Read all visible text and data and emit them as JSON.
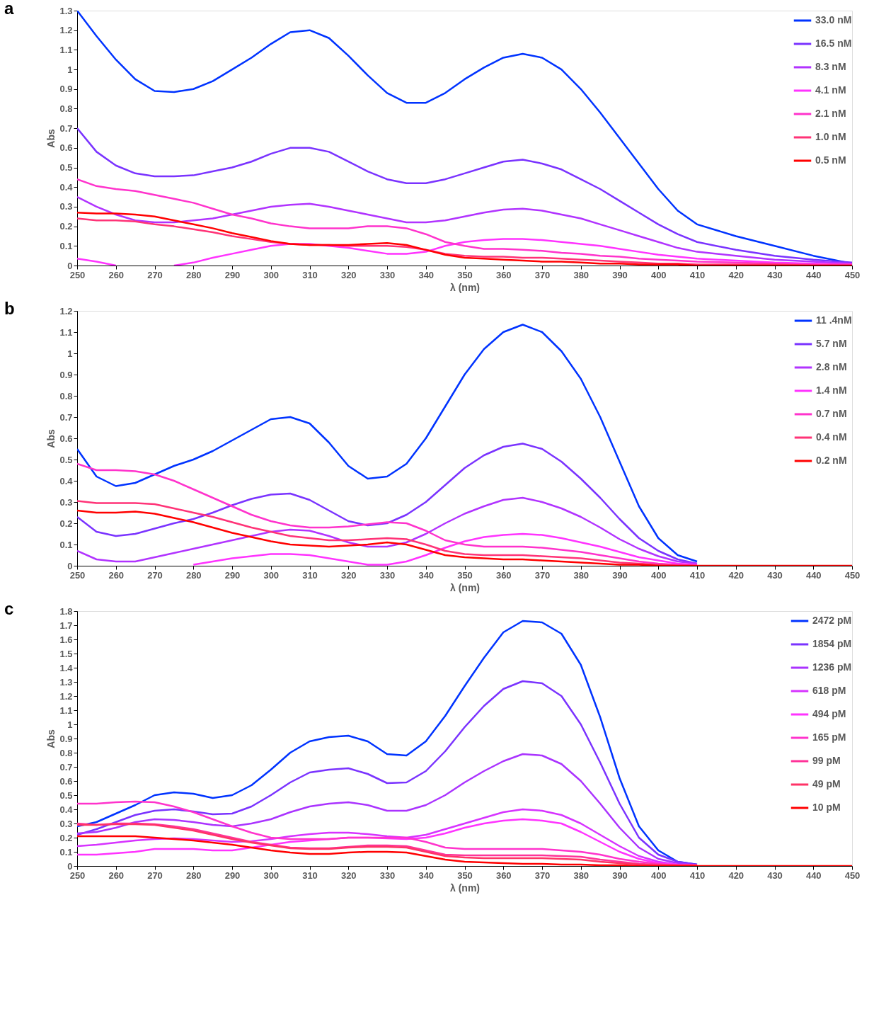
{
  "chart_data": [
    {
      "type": "line",
      "title": "a",
      "xlabel": "λ (nm)",
      "ylabel": "Abs",
      "xlim": [
        250,
        450
      ],
      "ylim": [
        0,
        1.3
      ],
      "xticks": [
        250,
        260,
        270,
        280,
        290,
        300,
        310,
        320,
        330,
        340,
        350,
        360,
        370,
        380,
        390,
        400,
        410,
        420,
        430,
        440,
        450
      ],
      "yticks": [
        0,
        0.1,
        0.2,
        0.3,
        0.4,
        0.5,
        0.6,
        0.7,
        0.8,
        0.9,
        1,
        1.1,
        1.2,
        1.3
      ],
      "grid": false,
      "legend": "top right",
      "marker": "none",
      "line_style": "solid",
      "x": [
        250,
        255,
        260,
        265,
        270,
        275,
        280,
        285,
        290,
        295,
        300,
        305,
        310,
        315,
        320,
        325,
        330,
        335,
        340,
        345,
        350,
        355,
        360,
        365,
        370,
        375,
        380,
        385,
        390,
        395,
        400,
        405,
        410,
        420,
        430,
        440,
        450
      ],
      "series": [
        {
          "name": "33.0 nM",
          "color": "#0033ff",
          "values": [
            1.3,
            1.17,
            1.05,
            0.95,
            0.89,
            0.885,
            0.9,
            0.94,
            1.0,
            1.06,
            1.13,
            1.19,
            1.2,
            1.16,
            1.07,
            0.97,
            0.88,
            0.83,
            0.83,
            0.88,
            0.95,
            1.01,
            1.06,
            1.08,
            1.06,
            1.0,
            0.9,
            0.78,
            0.65,
            0.52,
            0.39,
            0.28,
            0.21,
            0.15,
            0.1,
            0.05,
            0.01
          ]
        },
        {
          "name": "16.5 nM",
          "color": "#7a33ff",
          "values": [
            0.7,
            0.58,
            0.51,
            0.47,
            0.455,
            0.455,
            0.46,
            0.48,
            0.5,
            0.53,
            0.57,
            0.6,
            0.6,
            0.58,
            0.53,
            0.48,
            0.44,
            0.42,
            0.42,
            0.44,
            0.47,
            0.5,
            0.53,
            0.54,
            0.52,
            0.49,
            0.44,
            0.39,
            0.33,
            0.27,
            0.21,
            0.16,
            0.12,
            0.08,
            0.05,
            0.03,
            0.015
          ]
        },
        {
          "name": "8.3 nM",
          "color": "#b133ff",
          "values": [
            0.35,
            0.3,
            0.26,
            0.23,
            0.22,
            0.22,
            0.23,
            0.24,
            0.26,
            0.28,
            0.3,
            0.31,
            0.315,
            0.3,
            0.28,
            0.26,
            0.24,
            0.22,
            0.22,
            0.23,
            0.25,
            0.27,
            0.285,
            0.29,
            0.28,
            0.26,
            0.24,
            0.21,
            0.18,
            0.15,
            0.12,
            0.09,
            0.07,
            0.05,
            0.03,
            0.02,
            0.01
          ]
        },
        {
          "name": "4.1 nM",
          "color": "#ff33ff",
          "values": [
            0.035,
            0.02,
            0.0,
            null,
            null,
            0.0,
            0.015,
            0.04,
            0.06,
            0.08,
            0.1,
            0.11,
            0.11,
            0.1,
            0.09,
            0.075,
            0.06,
            0.06,
            0.07,
            0.1,
            0.12,
            0.13,
            0.135,
            0.135,
            0.13,
            0.12,
            0.11,
            0.1,
            0.085,
            0.07,
            0.055,
            0.045,
            0.035,
            0.025,
            0.015,
            0.01,
            0.005
          ]
        },
        {
          "name": "2.1 nM",
          "color": "#ff33cc",
          "values": [
            0.44,
            0.405,
            0.39,
            0.38,
            0.36,
            0.34,
            0.32,
            0.29,
            0.26,
            0.24,
            0.215,
            0.2,
            0.19,
            0.19,
            0.19,
            0.2,
            0.2,
            0.19,
            0.16,
            0.12,
            0.1,
            0.085,
            0.085,
            0.08,
            0.075,
            0.065,
            0.06,
            0.05,
            0.045,
            0.035,
            0.03,
            0.025,
            0.02,
            0.015,
            0.01,
            0.005,
            0.005
          ]
        },
        {
          "name": "1.0 nM",
          "color": "#ff3377",
          "values": [
            0.24,
            0.23,
            0.23,
            0.225,
            0.21,
            0.2,
            0.185,
            0.17,
            0.15,
            0.135,
            0.12,
            0.11,
            0.105,
            0.105,
            0.1,
            0.1,
            0.1,
            0.095,
            0.08,
            0.06,
            0.05,
            0.045,
            0.045,
            0.04,
            0.04,
            0.035,
            0.03,
            0.025,
            0.02,
            0.015,
            0.01,
            0.01,
            0.005,
            0.005,
            0.005,
            0.0,
            0.0
          ]
        },
        {
          "name": "0.5 nM",
          "color": "#ff0000",
          "values": [
            0.27,
            0.265,
            0.265,
            0.26,
            0.25,
            0.23,
            0.21,
            0.19,
            0.165,
            0.145,
            0.125,
            0.11,
            0.105,
            0.105,
            0.105,
            0.11,
            0.115,
            0.105,
            0.08,
            0.055,
            0.04,
            0.035,
            0.03,
            0.025,
            0.02,
            0.02,
            0.015,
            0.01,
            0.01,
            0.005,
            0.005,
            0.005,
            0.0,
            0.0,
            0.0,
            0.0,
            0.0
          ]
        }
      ]
    },
    {
      "type": "line",
      "title": "b",
      "xlabel": "λ (nm)",
      "ylabel": "Abs",
      "xlim": [
        250,
        450
      ],
      "ylim": [
        0,
        1.2
      ],
      "xticks": [
        250,
        260,
        270,
        280,
        290,
        300,
        310,
        320,
        330,
        340,
        350,
        360,
        370,
        380,
        390,
        400,
        410,
        420,
        430,
        440,
        450
      ],
      "yticks": [
        0,
        0.1,
        0.2,
        0.3,
        0.4,
        0.5,
        0.6,
        0.7,
        0.8,
        0.9,
        1,
        1.1,
        1.2
      ],
      "grid": false,
      "legend": "top right",
      "marker": "none",
      "line_style": "solid",
      "x": [
        250,
        255,
        260,
        265,
        270,
        275,
        280,
        285,
        290,
        295,
        300,
        305,
        310,
        315,
        320,
        325,
        330,
        335,
        340,
        345,
        350,
        355,
        360,
        365,
        370,
        375,
        380,
        385,
        390,
        395,
        400,
        405,
        410,
        420,
        430,
        440,
        450
      ],
      "series": [
        {
          "name": "11 .4nM",
          "color": "#0033ff",
          "values": [
            0.55,
            0.42,
            0.375,
            0.39,
            0.43,
            0.47,
            0.5,
            0.54,
            0.59,
            0.64,
            0.69,
            0.7,
            0.67,
            0.58,
            0.47,
            0.41,
            0.42,
            0.48,
            0.6,
            0.75,
            0.9,
            1.02,
            1.1,
            1.135,
            1.1,
            1.01,
            0.88,
            0.7,
            0.49,
            0.28,
            0.13,
            0.05,
            0.02,
            null,
            null,
            null,
            null
          ]
        },
        {
          "name": "5.7 nM",
          "color": "#7a33ff",
          "values": [
            0.23,
            0.16,
            0.14,
            0.15,
            0.175,
            0.2,
            0.22,
            0.25,
            0.285,
            0.315,
            0.335,
            0.34,
            0.31,
            0.26,
            0.21,
            0.19,
            0.2,
            0.24,
            0.3,
            0.38,
            0.46,
            0.52,
            0.56,
            0.575,
            0.55,
            0.49,
            0.41,
            0.32,
            0.22,
            0.13,
            0.07,
            0.03,
            0.01,
            null,
            null,
            null,
            null
          ]
        },
        {
          "name": "2.8 nM",
          "color": "#b133ff",
          "values": [
            0.07,
            0.03,
            0.02,
            0.02,
            0.04,
            0.06,
            0.08,
            0.1,
            0.12,
            0.14,
            0.16,
            0.17,
            0.165,
            0.14,
            0.11,
            0.09,
            0.09,
            0.11,
            0.15,
            0.2,
            0.245,
            0.28,
            0.31,
            0.32,
            0.3,
            0.27,
            0.23,
            0.18,
            0.125,
            0.08,
            0.045,
            0.02,
            0.01,
            null,
            null,
            null,
            null
          ]
        },
        {
          "name": "1.4 nM",
          "color": "#ff33ff",
          "values": [
            null,
            null,
            null,
            null,
            null,
            null,
            0.005,
            0.02,
            0.035,
            0.045,
            0.055,
            0.055,
            0.05,
            0.035,
            0.02,
            0.005,
            0.005,
            0.02,
            0.05,
            0.085,
            0.115,
            0.135,
            0.145,
            0.15,
            0.145,
            0.13,
            0.11,
            0.09,
            0.065,
            0.04,
            0.025,
            0.01,
            0.005,
            null,
            null,
            null,
            null
          ]
        },
        {
          "name": "0.7 nM",
          "color": "#ff33cc",
          "values": [
            0.48,
            0.45,
            0.45,
            0.445,
            0.43,
            0.4,
            0.36,
            0.32,
            0.28,
            0.24,
            0.21,
            0.19,
            0.18,
            0.18,
            0.185,
            0.195,
            0.205,
            0.2,
            0.165,
            0.12,
            0.1,
            0.09,
            0.09,
            0.09,
            0.085,
            0.075,
            0.065,
            0.05,
            0.035,
            0.02,
            0.01,
            0.005,
            0.0,
            null,
            null,
            null,
            null
          ]
        },
        {
          "name": "0.4 nM",
          "color": "#ff3377",
          "values": [
            0.305,
            0.295,
            0.295,
            0.295,
            0.29,
            0.27,
            0.25,
            0.23,
            0.205,
            0.18,
            0.16,
            0.14,
            0.13,
            0.12,
            0.12,
            0.125,
            0.13,
            0.125,
            0.1,
            0.07,
            0.055,
            0.05,
            0.05,
            0.05,
            0.045,
            0.04,
            0.035,
            0.025,
            0.015,
            0.01,
            0.005,
            0.0,
            0.0,
            null,
            null,
            null,
            null
          ]
        },
        {
          "name": "0.2 nM",
          "color": "#ff0000",
          "values": [
            0.26,
            0.25,
            0.25,
            0.255,
            0.245,
            0.225,
            0.205,
            0.18,
            0.155,
            0.135,
            0.115,
            0.1,
            0.095,
            0.09,
            0.095,
            0.1,
            0.11,
            0.1,
            0.075,
            0.05,
            0.04,
            0.035,
            0.03,
            0.03,
            0.025,
            0.02,
            0.015,
            0.01,
            0.005,
            0.005,
            0.0,
            0.0,
            0.0,
            0.0,
            0.0,
            0.0,
            0.0
          ]
        }
      ]
    },
    {
      "type": "line",
      "title": "c",
      "xlabel": "λ (nm)",
      "ylabel": "Abs",
      "xlim": [
        250,
        450
      ],
      "ylim": [
        0,
        1.8
      ],
      "xticks": [
        250,
        260,
        270,
        280,
        290,
        300,
        310,
        320,
        330,
        340,
        350,
        360,
        370,
        380,
        390,
        400,
        410,
        420,
        430,
        440,
        450
      ],
      "yticks": [
        0,
        0.1,
        0.2,
        0.3,
        0.4,
        0.5,
        0.6,
        0.7,
        0.8,
        0.9,
        1,
        1.1,
        1.2,
        1.3,
        1.4,
        1.5,
        1.6,
        1.7,
        1.8
      ],
      "grid": false,
      "legend": "top right",
      "marker": "none",
      "line_style": "solid",
      "x": [
        250,
        255,
        260,
        265,
        270,
        275,
        280,
        285,
        290,
        295,
        300,
        305,
        310,
        315,
        320,
        325,
        330,
        335,
        340,
        345,
        350,
        355,
        360,
        365,
        370,
        375,
        380,
        385,
        390,
        395,
        400,
        405,
        410,
        420,
        430,
        440,
        450
      ],
      "series": [
        {
          "name": "2472 pM",
          "color": "#0033ff",
          "values": [
            0.28,
            0.31,
            0.37,
            0.43,
            0.5,
            0.52,
            0.51,
            0.48,
            0.5,
            0.57,
            0.68,
            0.8,
            0.88,
            0.91,
            0.92,
            0.88,
            0.79,
            0.78,
            0.88,
            1.06,
            1.27,
            1.47,
            1.65,
            1.73,
            1.72,
            1.64,
            1.42,
            1.05,
            0.62,
            0.28,
            0.11,
            0.03,
            0.01,
            null,
            null,
            null,
            null
          ]
        },
        {
          "name": "1854 pM",
          "color": "#7a33ff",
          "values": [
            0.22,
            0.26,
            0.31,
            0.36,
            0.39,
            0.4,
            0.385,
            0.365,
            0.37,
            0.42,
            0.5,
            0.59,
            0.66,
            0.68,
            0.69,
            0.65,
            0.585,
            0.59,
            0.67,
            0.81,
            0.98,
            1.13,
            1.25,
            1.305,
            1.29,
            1.2,
            1.0,
            0.73,
            0.44,
            0.2,
            0.08,
            0.03,
            0.01,
            null,
            null,
            null,
            null
          ]
        },
        {
          "name": "1236 pM",
          "color": "#aa33ff",
          "values": [
            0.23,
            0.24,
            0.27,
            0.31,
            0.33,
            0.325,
            0.31,
            0.29,
            0.28,
            0.3,
            0.33,
            0.38,
            0.42,
            0.44,
            0.45,
            0.43,
            0.39,
            0.39,
            0.43,
            0.5,
            0.59,
            0.67,
            0.74,
            0.79,
            0.78,
            0.72,
            0.6,
            0.44,
            0.27,
            0.13,
            0.05,
            0.02,
            0.005,
            null,
            null,
            null,
            null
          ]
        },
        {
          "name": "618 pM",
          "color": "#d633ff",
          "values": [
            0.14,
            0.15,
            0.165,
            0.18,
            0.19,
            0.195,
            0.19,
            0.18,
            0.17,
            0.175,
            0.19,
            0.21,
            0.225,
            0.235,
            0.235,
            0.225,
            0.21,
            0.2,
            0.22,
            0.26,
            0.3,
            0.34,
            0.38,
            0.4,
            0.39,
            0.36,
            0.3,
            0.22,
            0.14,
            0.07,
            0.03,
            0.01,
            0.005,
            null,
            null,
            null,
            null
          ]
        },
        {
          "name": "494 pM",
          "color": "#ff33ff",
          "values": [
            0.08,
            0.08,
            0.09,
            0.1,
            0.12,
            0.12,
            0.12,
            0.11,
            0.11,
            0.13,
            0.15,
            0.17,
            0.18,
            0.19,
            0.2,
            0.2,
            0.195,
            0.19,
            0.2,
            0.23,
            0.27,
            0.3,
            0.32,
            0.33,
            0.32,
            0.3,
            0.24,
            0.17,
            0.1,
            0.05,
            0.02,
            0.01,
            0.005,
            null,
            null,
            null,
            null
          ]
        },
        {
          "name": "165 pM",
          "color": "#ff33cc",
          "values": [
            0.44,
            0.44,
            0.45,
            0.455,
            0.45,
            0.42,
            0.38,
            0.33,
            0.28,
            0.235,
            0.2,
            0.19,
            0.19,
            0.19,
            0.2,
            0.2,
            0.2,
            0.2,
            0.17,
            0.13,
            0.12,
            0.12,
            0.12,
            0.12,
            0.12,
            0.11,
            0.1,
            0.08,
            0.05,
            0.03,
            0.015,
            0.005,
            0.005,
            null,
            null,
            null,
            null
          ]
        },
        {
          "name": "99 pM",
          "color": "#ff3399",
          "values": [
            0.3,
            0.29,
            0.3,
            0.3,
            0.295,
            0.28,
            0.26,
            0.23,
            0.2,
            0.17,
            0.15,
            0.13,
            0.125,
            0.125,
            0.135,
            0.145,
            0.145,
            0.14,
            0.11,
            0.08,
            0.075,
            0.075,
            0.075,
            0.075,
            0.075,
            0.07,
            0.065,
            0.045,
            0.03,
            0.015,
            0.01,
            0.005,
            0.005,
            null,
            null,
            null,
            null
          ]
        },
        {
          "name": "49 pM",
          "color": "#ff3366",
          "values": [
            0.29,
            0.29,
            0.295,
            0.295,
            0.29,
            0.27,
            0.25,
            0.22,
            0.19,
            0.165,
            0.145,
            0.125,
            0.12,
            0.12,
            0.13,
            0.135,
            0.135,
            0.13,
            0.1,
            0.07,
            0.06,
            0.055,
            0.055,
            0.055,
            0.055,
            0.05,
            0.045,
            0.03,
            0.02,
            0.01,
            0.005,
            0.005,
            0.005,
            null,
            null,
            null,
            null
          ]
        },
        {
          "name": "10 pM",
          "color": "#ff0000",
          "values": [
            0.21,
            0.21,
            0.21,
            0.21,
            0.2,
            0.19,
            0.18,
            0.165,
            0.15,
            0.13,
            0.11,
            0.095,
            0.085,
            0.085,
            0.095,
            0.1,
            0.1,
            0.095,
            0.07,
            0.045,
            0.03,
            0.025,
            0.02,
            0.015,
            0.015,
            0.01,
            0.01,
            0.005,
            0.005,
            0.0,
            0.0,
            0.0,
            0.0,
            0.0,
            0.0,
            0.0,
            0.0
          ]
        }
      ]
    }
  ]
}
